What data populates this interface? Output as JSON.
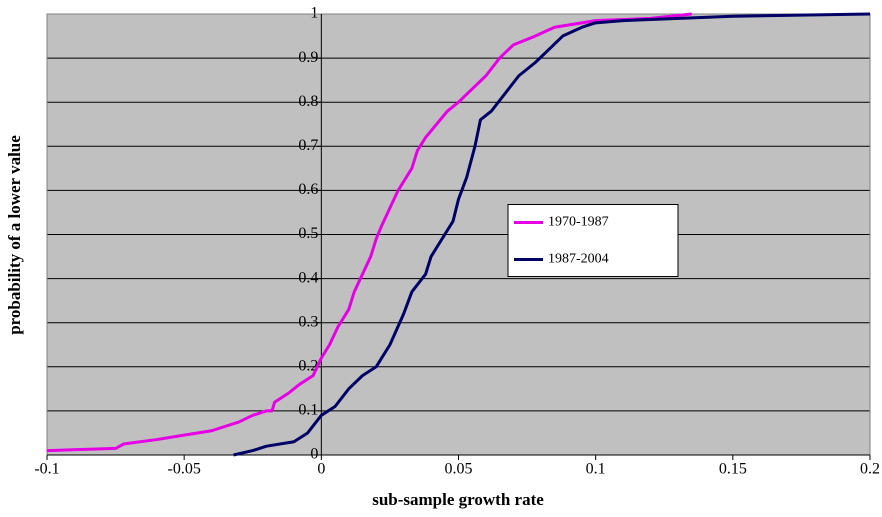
{
  "chart_data": {
    "type": "line",
    "xlabel": "sub-sample growth rate",
    "ylabel": "probability of a lower value",
    "xlim": [
      -0.1,
      0.2
    ],
    "xticks": [
      -0.1,
      -0.05,
      0,
      0.05,
      0.1,
      0.15,
      0.2
    ],
    "ylim": [
      0,
      1
    ],
    "yticks": [
      0,
      0.1,
      0.2,
      0.3,
      0.4,
      0.5,
      0.6,
      0.7,
      0.8,
      0.9,
      1
    ],
    "grid": true,
    "legend": "center right",
    "series": [
      {
        "name": "1970-1987",
        "color": "#e600e6",
        "x": [
          -0.1,
          -0.075,
          -0.072,
          -0.06,
          -0.05,
          -0.04,
          -0.03,
          -0.025,
          -0.02,
          -0.018,
          -0.017,
          -0.012,
          -0.008,
          -0.003,
          0,
          0.003,
          0.006,
          0.01,
          0.012,
          0.015,
          0.018,
          0.02,
          0.022,
          0.025,
          0.028,
          0.03,
          0.033,
          0.035,
          0.038,
          0.042,
          0.046,
          0.05,
          0.055,
          0.06,
          0.065,
          0.07,
          0.078,
          0.085,
          0.1,
          0.12,
          0.135
        ],
        "values": [
          0.01,
          0.015,
          0.025,
          0.035,
          0.045,
          0.055,
          0.075,
          0.09,
          0.1,
          0.1,
          0.12,
          0.14,
          0.16,
          0.18,
          0.22,
          0.25,
          0.29,
          0.33,
          0.37,
          0.41,
          0.45,
          0.49,
          0.52,
          0.56,
          0.6,
          0.62,
          0.65,
          0.69,
          0.72,
          0.75,
          0.78,
          0.8,
          0.83,
          0.86,
          0.9,
          0.93,
          0.95,
          0.97,
          0.985,
          0.99,
          1
        ]
      },
      {
        "name": "1987-2004",
        "color": "#000066",
        "x": [
          -0.032,
          -0.025,
          -0.02,
          -0.01,
          -0.005,
          0,
          0.005,
          0.01,
          0.015,
          0.02,
          0.025,
          0.03,
          0.033,
          0.038,
          0.04,
          0.045,
          0.048,
          0.05,
          0.053,
          0.056,
          0.058,
          0.062,
          0.067,
          0.072,
          0.078,
          0.083,
          0.088,
          0.095,
          0.1,
          0.11,
          0.15,
          0.2
        ],
        "values": [
          0,
          0.01,
          0.02,
          0.03,
          0.05,
          0.09,
          0.11,
          0.15,
          0.18,
          0.2,
          0.25,
          0.32,
          0.37,
          0.41,
          0.45,
          0.5,
          0.53,
          0.58,
          0.63,
          0.7,
          0.76,
          0.78,
          0.82,
          0.86,
          0.89,
          0.92,
          0.95,
          0.97,
          0.98,
          0.985,
          0.995,
          1
        ]
      }
    ]
  }
}
